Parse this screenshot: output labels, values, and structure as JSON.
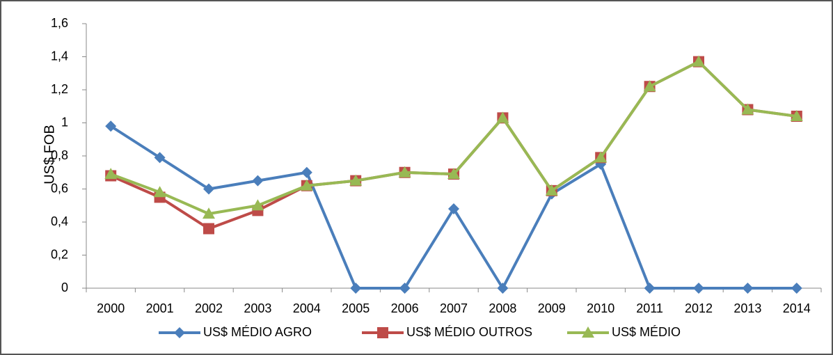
{
  "chart_data": {
    "type": "line",
    "y_label": "US$ FOB",
    "categories": [
      "2000",
      "2001",
      "2002",
      "2003",
      "2004",
      "2005",
      "2006",
      "2007",
      "2008",
      "2009",
      "2010",
      "2011",
      "2012",
      "2013",
      "2014"
    ],
    "series": [
      {
        "name": "US$ MÉDIO AGRO",
        "color": "#4a7ebb",
        "marker": "diamond",
        "values": [
          0.98,
          0.79,
          0.6,
          0.65,
          0.7,
          0,
          0,
          0.48,
          0,
          0.57,
          0.75,
          0,
          0,
          0,
          0
        ]
      },
      {
        "name": "US$ MÉDIO OUTROS",
        "color": "#be4b48",
        "marker": "square",
        "values": [
          0.68,
          0.55,
          0.36,
          0.47,
          0.62,
          0.65,
          0.7,
          0.69,
          1.03,
          0.59,
          0.79,
          1.22,
          1.37,
          1.08,
          1.04
        ]
      },
      {
        "name": "US$ MÉDIO",
        "color": "#98b954",
        "marker": "triangle",
        "values": [
          0.69,
          0.58,
          0.45,
          0.5,
          0.62,
          0.65,
          0.7,
          0.69,
          1.03,
          0.59,
          0.79,
          1.22,
          1.37,
          1.08,
          1.04
        ]
      }
    ],
    "ylim": [
      0,
      1.6
    ],
    "yticks": [
      0,
      {
        "value": 0.2,
        "label": "0,2"
      },
      {
        "value": 0.4,
        "label": "0,4"
      },
      {
        "value": 0.6,
        "label": "0,6"
      },
      {
        "value": 0.8,
        "label": "0,8"
      },
      1,
      {
        "value": 1.2,
        "label": "1,2"
      },
      {
        "value": 1.4,
        "label": "1,4"
      },
      {
        "value": 1.6,
        "label": "1,6"
      }
    ],
    "grid": false,
    "legend": "bottom"
  }
}
